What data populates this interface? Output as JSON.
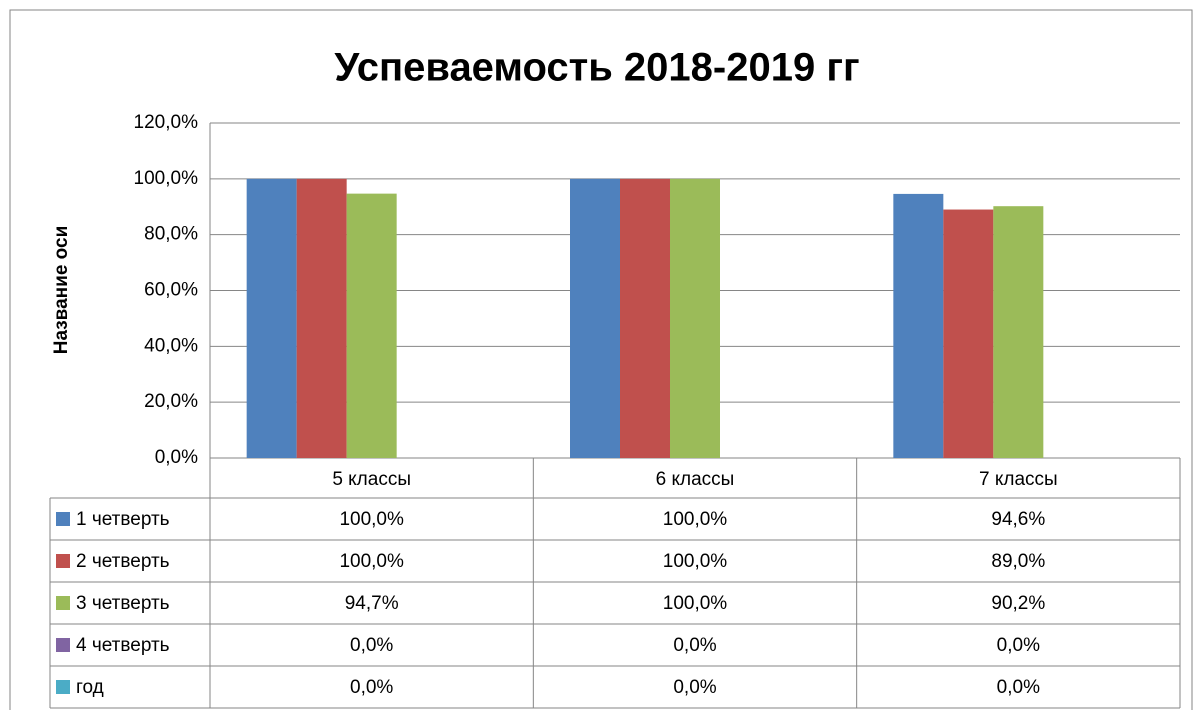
{
  "chart_data": {
    "type": "bar",
    "title": "Успеваемость 2018-2019 гг",
    "y_label": "Название оси",
    "categories": [
      "5 классы",
      "6 классы",
      "7 классы"
    ],
    "series": [
      {
        "name": "1 четверть",
        "color": "#4f81bd",
        "values": [
          100,
          100,
          94.6
        ],
        "value_labels": [
          "100,0%",
          "100,0%",
          "94,6%"
        ]
      },
      {
        "name": "2 четверть",
        "color": "#c0504d",
        "values": [
          100,
          100,
          89
        ],
        "value_labels": [
          "100,0%",
          "100,0%",
          "89,0%"
        ]
      },
      {
        "name": "3 четверть",
        "color": "#9bbb59",
        "values": [
          94.7,
          100,
          90.2
        ],
        "value_labels": [
          "94,7%",
          "100,0%",
          "90,2%"
        ]
      },
      {
        "name": "4 четверть",
        "color": "#8064a2",
        "values": [
          0,
          0,
          0
        ],
        "value_labels": [
          "0,0%",
          "0,0%",
          "0,0%"
        ]
      },
      {
        "name": "год",
        "color": "#4bacc6",
        "values": [
          0,
          0,
          0
        ],
        "value_labels": [
          "0,0%",
          "0,0%",
          "0,0%"
        ]
      }
    ],
    "ylim": [
      0,
      120
    ],
    "yticks": [
      {
        "value": 0,
        "label": "0,0%"
      },
      {
        "value": 20,
        "label": "20,0%"
      },
      {
        "value": 40,
        "label": "40,0%"
      },
      {
        "value": 60,
        "label": "60,0%"
      },
      {
        "value": 80,
        "label": "80,0%"
      },
      {
        "value": 100,
        "label": "100,0%"
      },
      {
        "value": 120,
        "label": "120,0%"
      }
    ],
    "grid": true
  }
}
